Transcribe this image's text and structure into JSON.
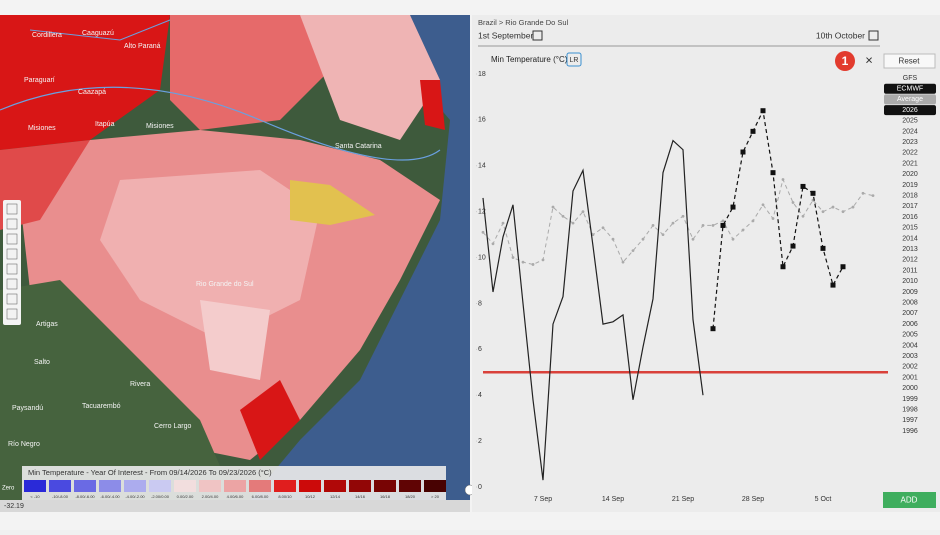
{
  "map": {
    "labels": [
      "Cordillera",
      "Caaguazú",
      "Alto Paraná",
      "Paraguarí",
      "Caazapá",
      "Itapúa",
      "Misiones",
      "Misiones",
      "Santa Catarina",
      "Rio Grande do Sul",
      "Artigas",
      "Salto",
      "Rivera",
      "Paysandú",
      "Tacuarembó",
      "Cerro Largo",
      "Río Negro"
    ],
    "coordinate": "-32.19",
    "legend": {
      "title": "Min Temperature - Year Of Interest - From 09/14/2026 To 09/23/2026 (°C)",
      "first_label": "Zero",
      "bins": [
        {
          "label": "< -10",
          "color": "#2a2ad8"
        },
        {
          "label": "-10/-8.00",
          "color": "#4a4ae0"
        },
        {
          "label": "-8.00/-6.00",
          "color": "#6a6ae4"
        },
        {
          "label": "-6.00/-4.00",
          "color": "#8c8ce8"
        },
        {
          "label": "-4.00/-2.00",
          "color": "#acacee"
        },
        {
          "label": "-2.00/0.00",
          "color": "#cacaf2"
        },
        {
          "label": "0.00/2.00",
          "color": "#f2dede"
        },
        {
          "label": "2.00/4.00",
          "color": "#f0c4c4"
        },
        {
          "label": "4.00/6.00",
          "color": "#eca4a4"
        },
        {
          "label": "6.00/8.00",
          "color": "#e47a7a"
        },
        {
          "label": "8.00/10",
          "color": "#e01e1e"
        },
        {
          "label": "10/12",
          "color": "#cc0a0a"
        },
        {
          "label": "12/14",
          "color": "#b00808"
        },
        {
          "label": "14/16",
          "color": "#920606"
        },
        {
          "label": "16/18",
          "color": "#780404"
        },
        {
          "label": "18/20",
          "color": "#600404"
        },
        {
          "label": "> 20",
          "color": "#480202"
        }
      ]
    }
  },
  "panel": {
    "breadcrumb": "Brazil > Rio Grande Do Sul",
    "start_date": "1st September",
    "end_date": "10th October",
    "badge": "1",
    "close": "×",
    "reset": "Reset",
    "add": "ADD",
    "sidebar": [
      "GFS",
      "ECMWF",
      "Average",
      "2026",
      "2025",
      "2024",
      "2023",
      "2022",
      "2021",
      "2020",
      "2019",
      "2018",
      "2017",
      "2016",
      "2015",
      "2014",
      "2013",
      "2012",
      "2011",
      "2010",
      "2009",
      "2008",
      "2007",
      "2006",
      "2005",
      "2004",
      "2003",
      "2002",
      "2001",
      "2000",
      "1999",
      "1998",
      "1997",
      "1996"
    ]
  },
  "chart_data": {
    "type": "line",
    "title": "Min Temperature (°C)",
    "badge": "LR",
    "categories": [
      null,
      null,
      null,
      null,
      null,
      null,
      "7 Sep",
      null,
      null,
      null,
      null,
      null,
      null,
      "14 Sep",
      null,
      null,
      null,
      null,
      null,
      null,
      "21 Sep",
      null,
      null,
      null,
      null,
      null,
      null,
      "28 Sep",
      null,
      null,
      null,
      null,
      null,
      null,
      "5 Oct",
      null,
      null,
      null,
      null,
      null
    ],
    "series": [
      {
        "color": "#aaaaaa",
        "style": "dashed",
        "marker": "circle",
        "values": [
          11.1,
          10.6,
          11.5,
          10.0,
          9.8,
          9.7,
          9.9,
          12.2,
          11.8,
          11.5,
          12.0,
          11.0,
          11.3,
          10.8,
          9.8,
          10.3,
          10.8,
          11.4,
          11.0,
          11.5,
          11.8,
          10.8,
          11.4,
          11.4,
          11.6,
          10.8,
          11.2,
          11.6,
          12.3,
          11.7,
          13.4,
          12.4,
          11.8,
          12.5,
          12.0,
          12.2,
          12.0,
          12.2,
          12.8,
          12.7
        ]
      },
      {
        "color": "#222222",
        "style": "solid",
        "marker": "none",
        "values": [
          12.6,
          8.5,
          10.9,
          12.3,
          8.0,
          3.8,
          0.3,
          7.1,
          8.3,
          12.9,
          13.8,
          10.5,
          7.1,
          7.2,
          7.5,
          3.8,
          6.1,
          8.2,
          13.7,
          15.1,
          14.7,
          7.3,
          4.0,
          null,
          null,
          null,
          null,
          null,
          null,
          null,
          null,
          null,
          null,
          null,
          null,
          null,
          null,
          null,
          null,
          null
        ]
      },
      {
        "color": "#111111",
        "style": "dashed",
        "marker": "square",
        "values": [
          null,
          null,
          null,
          null,
          null,
          null,
          null,
          null,
          null,
          null,
          null,
          null,
          null,
          null,
          null,
          null,
          null,
          null,
          null,
          null,
          null,
          null,
          null,
          6.9,
          11.4,
          12.2,
          14.6,
          15.5,
          16.4,
          13.7,
          9.6,
          10.5,
          13.1,
          12.8,
          10.4,
          8.8,
          9.6,
          null,
          null,
          null
        ]
      }
    ],
    "threshold": {
      "value": 5,
      "color": "#d9413a"
    },
    "ylim": [
      0,
      18
    ],
    "yticks": [
      0,
      2,
      4,
      6,
      8,
      10,
      12,
      14,
      16,
      18
    ],
    "grid": false
  }
}
